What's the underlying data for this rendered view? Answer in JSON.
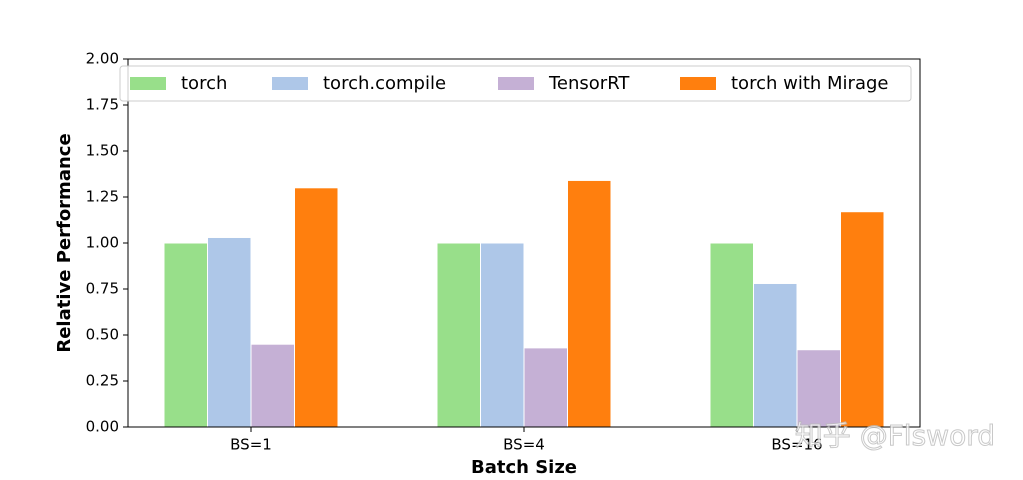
{
  "chart_data": {
    "type": "bar",
    "x_label": "Batch Size",
    "y_label": "Relative Performance",
    "categories": [
      "BS=1",
      "BS=4",
      "BS=16"
    ],
    "series": [
      {
        "name": "torch",
        "color": "#98df8a",
        "values": [
          1.0,
          1.0,
          1.0
        ]
      },
      {
        "name": "torch.compile",
        "color": "#aec7e8",
        "values": [
          1.03,
          1.0,
          0.78
        ]
      },
      {
        "name": "TensorRT",
        "color": "#c5b0d5",
        "values": [
          0.45,
          0.43,
          0.42
        ]
      },
      {
        "name": "torch with Mirage",
        "color": "#ff7f0e",
        "values": [
          1.3,
          1.34,
          1.17
        ]
      }
    ],
    "ylim": [
      0,
      2
    ],
    "yticks": [
      {
        "value": 0,
        "label": "0.00"
      },
      {
        "value": 0.25,
        "label": "0.25"
      },
      {
        "value": 0.5,
        "label": "0.50"
      },
      {
        "value": 0.75,
        "label": "0.75"
      },
      {
        "value": 1,
        "label": "1.00"
      },
      {
        "value": 1.25,
        "label": "1.25"
      },
      {
        "value": 1.5,
        "label": "1.50"
      },
      {
        "value": 1.75,
        "label": "1.75"
      },
      {
        "value": 2,
        "label": "2.00"
      }
    ],
    "legend": "top",
    "watermark": "知乎 @Flsword"
  }
}
